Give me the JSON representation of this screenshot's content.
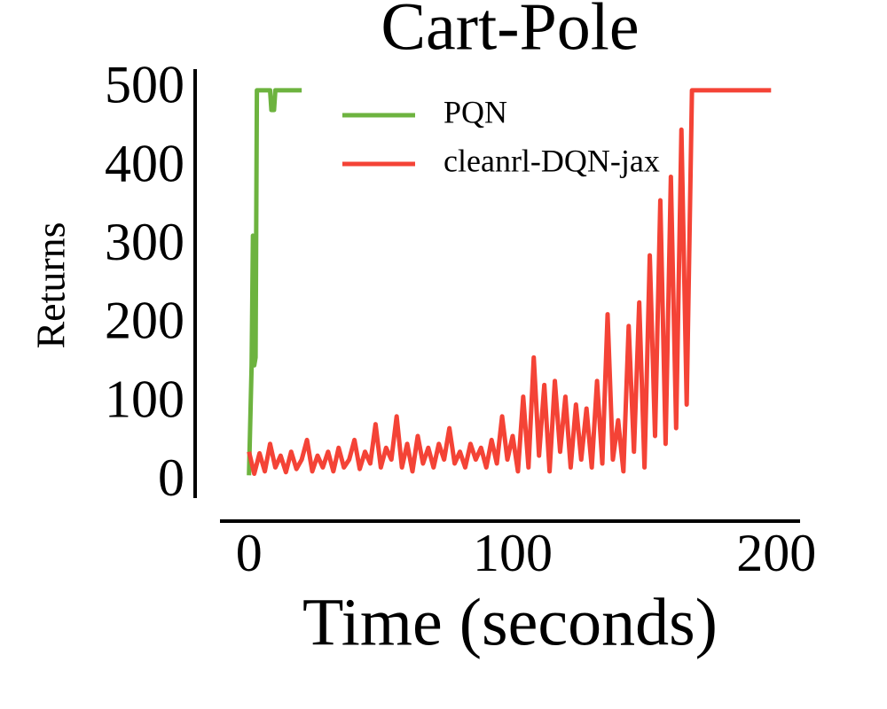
{
  "chart_data": {
    "type": "line",
    "title": "Cart-Pole",
    "xlabel": "Time (seconds)",
    "ylabel": "Returns",
    "xlim": [
      -11,
      209
    ],
    "ylim": [
      -19,
      527
    ],
    "xticks": [
      0,
      100,
      200
    ],
    "yticks": [
      0,
      100,
      200,
      300,
      400,
      500
    ],
    "legend": "upper center",
    "series": [
      {
        "name": "PQN",
        "color": "#6db33f",
        "x": [
          0,
          1,
          1.5,
          2,
          2.5,
          3,
          5,
          8,
          8.5,
          9.5,
          10,
          14,
          20
        ],
        "values": [
          10,
          150,
          315,
          150,
          160,
          500,
          500,
          500,
          475,
          475,
          500,
          500,
          500
        ]
      },
      {
        "name": "cleanrl-DQN-jax",
        "color": "#f44336",
        "x": [
          0,
          2,
          4,
          6,
          8,
          10,
          12,
          14,
          16,
          18,
          20,
          22,
          24,
          26,
          28,
          30,
          32,
          34,
          36,
          38,
          40,
          42,
          44,
          46,
          48,
          50,
          52,
          54,
          56,
          58,
          60,
          62,
          64,
          66,
          68,
          70,
          72,
          74,
          76,
          78,
          80,
          82,
          84,
          86,
          88,
          90,
          92,
          94,
          96,
          98,
          100,
          102,
          104,
          106,
          108,
          110,
          112,
          114,
          116,
          118,
          120,
          122,
          124,
          126,
          128,
          130,
          132,
          134,
          136,
          138,
          140,
          142,
          144,
          146,
          148,
          150,
          152,
          154,
          156,
          158,
          160,
          162,
          164,
          166,
          168,
          170,
          172,
          174,
          176,
          178,
          180,
          182,
          184,
          186,
          188,
          190,
          192,
          194,
          196,
          198
        ],
        "values": [
          40,
          12,
          38,
          15,
          50,
          20,
          35,
          14,
          40,
          18,
          30,
          55,
          15,
          35,
          20,
          40,
          15,
          45,
          20,
          30,
          55,
          18,
          40,
          25,
          75,
          20,
          45,
          30,
          85,
          20,
          50,
          15,
          60,
          25,
          45,
          20,
          50,
          30,
          70,
          25,
          40,
          20,
          50,
          30,
          45,
          20,
          55,
          25,
          85,
          30,
          60,
          15,
          110,
          20,
          160,
          35,
          125,
          15,
          130,
          40,
          110,
          20,
          100,
          30,
          95,
          20,
          130,
          25,
          215,
          30,
          80,
          15,
          200,
          40,
          230,
          20,
          290,
          60,
          360,
          50,
          390,
          70,
          450,
          100,
          500,
          500,
          500,
          500,
          500,
          500,
          500,
          500,
          500,
          500,
          500,
          500,
          500,
          500,
          500,
          500
        ]
      }
    ]
  }
}
